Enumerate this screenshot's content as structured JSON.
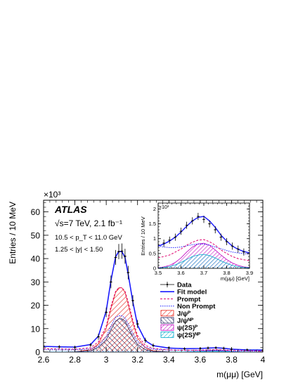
{
  "chart_data": {
    "type": "line",
    "experiment": "ATLAS",
    "energy_label": "√s=7 TeV, 2.1 fb⁻¹",
    "pt_cut": "10.5 < p_T < 11.0 GeV",
    "y_cut": "1.25 < |y| < 1.50",
    "xlabel": "m(μμ) [GeV]",
    "ylabel": "Entries / 10 MeV",
    "y_multiplier": "×10³",
    "xlim": [
      2.6,
      4.0
    ],
    "ylim": [
      0,
      65
    ],
    "xticks": [
      "2.6",
      "2.8",
      "3",
      "3.2",
      "3.4",
      "3.6",
      "3.8",
      "4"
    ],
    "yticks": [
      "0",
      "10",
      "20",
      "30",
      "40",
      "50",
      "60"
    ],
    "legend": [
      "Data",
      "Fit model",
      "Prompt",
      "Non Prompt",
      "J/ψᴾ",
      "J/ψᴺᴾ",
      "ψ(2S)ᴾ",
      "ψ(2S)ᴺᴾ"
    ],
    "legend_position": "center-right",
    "x": [
      2.6,
      2.7,
      2.8,
      2.9,
      2.95,
      3.0,
      3.03,
      3.06,
      3.08,
      3.1,
      3.12,
      3.14,
      3.17,
      3.2,
      3.25,
      3.3,
      3.4,
      3.5,
      3.6,
      3.65,
      3.7,
      3.75,
      3.8,
      3.9,
      4.0
    ],
    "series": [
      {
        "name": "Data",
        "values": [
          2.5,
          2.2,
          2.0,
          3.0,
          6.5,
          17.0,
          30.0,
          40.5,
          43.0,
          43.2,
          41.0,
          34.0,
          22.0,
          12.0,
          5.0,
          2.8,
          1.8,
          1.4,
          1.5,
          1.7,
          1.8,
          1.6,
          1.2,
          0.9,
          0.8
        ]
      },
      {
        "name": "Fit model",
        "values": [
          2.4,
          2.2,
          2.1,
          3.2,
          6.8,
          17.5,
          30.5,
          40.8,
          43.0,
          43.0,
          40.5,
          33.5,
          21.5,
          11.5,
          4.8,
          2.7,
          1.7,
          1.4,
          1.5,
          1.7,
          1.8,
          1.6,
          1.2,
          0.9,
          0.8
        ]
      },
      {
        "name": "Prompt",
        "values": [
          1.4,
          1.3,
          1.2,
          1.8,
          4.3,
          11.0,
          19.5,
          26.0,
          27.5,
          27.5,
          26.0,
          21.5,
          13.5,
          7.0,
          2.8,
          1.5,
          0.9,
          0.7,
          0.8,
          0.9,
          1.0,
          0.9,
          0.7,
          0.5,
          0.4
        ]
      },
      {
        "name": "Non Prompt",
        "values": [
          1.0,
          0.9,
          0.9,
          1.3,
          2.6,
          6.5,
          11.0,
          14.8,
          15.5,
          15.5,
          14.5,
          12.0,
          8.0,
          4.5,
          2.0,
          1.2,
          0.8,
          0.7,
          0.7,
          0.8,
          0.8,
          0.7,
          0.5,
          0.4,
          0.4
        ]
      },
      {
        "name": "J/ψᴾ",
        "values": [
          0,
          0,
          0.1,
          1.0,
          3.5,
          10.0,
          18.5,
          25.5,
          27.5,
          27.5,
          25.5,
          20.5,
          12.5,
          6.0,
          1.8,
          0.5,
          0.1,
          0,
          0,
          0,
          0,
          0,
          0,
          0,
          0
        ]
      },
      {
        "name": "J/ψᴺᴾ",
        "values": [
          0,
          0,
          0.1,
          0.5,
          2.0,
          5.2,
          9.5,
          13.2,
          14.2,
          14.2,
          13.2,
          10.5,
          6.5,
          3.2,
          1.0,
          0.3,
          0.05,
          0,
          0,
          0,
          0,
          0,
          0,
          0,
          0
        ]
      },
      {
        "name": "ψ(2S)ᴾ",
        "values": [
          0,
          0,
          0,
          0,
          0,
          0,
          0,
          0,
          0,
          0,
          0,
          0,
          0,
          0,
          0,
          0,
          0,
          0.05,
          0.3,
          0.55,
          0.65,
          0.5,
          0.2,
          0,
          0
        ]
      },
      {
        "name": "ψ(2S)ᴺᴾ",
        "values": [
          0,
          0,
          0,
          0,
          0,
          0,
          0,
          0,
          0,
          0,
          0,
          0,
          0,
          0,
          0,
          0,
          0,
          0.03,
          0.18,
          0.33,
          0.38,
          0.3,
          0.12,
          0,
          0
        ]
      }
    ],
    "inset": {
      "type": "line",
      "xlabel": "m(μμ) [GeV]",
      "ylabel": "Entries / 10 MeV",
      "y_multiplier": "×10³",
      "xlim": [
        3.5,
        3.9
      ],
      "ylim": [
        0,
        2.2
      ],
      "xticks": [
        "3.5",
        "3.6",
        "3.7",
        "3.8",
        "3.9"
      ],
      "yticks": [
        "0",
        "0.5",
        "1",
        "1.5",
        "2"
      ],
      "x": [
        3.5,
        3.525,
        3.55,
        3.575,
        3.6,
        3.625,
        3.65,
        3.675,
        3.7,
        3.725,
        3.75,
        3.775,
        3.8,
        3.825,
        3.85,
        3.875,
        3.9
      ],
      "series": [
        {
          "name": "Data",
          "values": [
            0.8,
            0.85,
            0.95,
            1.05,
            1.25,
            1.45,
            1.6,
            1.75,
            1.65,
            1.5,
            1.3,
            1.05,
            0.9,
            0.75,
            0.65,
            0.55,
            0.5
          ]
        },
        {
          "name": "Fit model",
          "values": [
            0.75,
            0.82,
            0.92,
            1.05,
            1.22,
            1.42,
            1.6,
            1.72,
            1.75,
            1.6,
            1.38,
            1.12,
            0.92,
            0.75,
            0.64,
            0.57,
            0.52
          ]
        },
        {
          "name": "Prompt",
          "values": [
            0.35,
            0.4,
            0.45,
            0.55,
            0.65,
            0.78,
            0.88,
            0.95,
            0.97,
            0.9,
            0.78,
            0.62,
            0.5,
            0.4,
            0.33,
            0.29,
            0.26
          ]
        },
        {
          "name": "Non Prompt",
          "values": [
            0.75,
            0.72,
            0.7,
            0.7,
            0.72,
            0.76,
            0.8,
            0.82,
            0.82,
            0.78,
            0.72,
            0.66,
            0.6,
            0.55,
            0.52,
            0.5,
            0.48
          ]
        },
        {
          "name": "ψ(2S)ᴾ",
          "values": [
            0.02,
            0.05,
            0.1,
            0.2,
            0.35,
            0.55,
            0.72,
            0.82,
            0.85,
            0.78,
            0.62,
            0.45,
            0.3,
            0.18,
            0.1,
            0.05,
            0.03
          ]
        },
        {
          "name": "ψ(2S)ᴺᴾ",
          "values": [
            0.01,
            0.03,
            0.06,
            0.12,
            0.2,
            0.3,
            0.4,
            0.45,
            0.47,
            0.43,
            0.35,
            0.25,
            0.17,
            0.1,
            0.06,
            0.03,
            0.02
          ]
        }
      ]
    }
  },
  "colors": {
    "fit_model": "#1a1aff",
    "prompt": "#e0006e",
    "non_prompt": "#1a1aff",
    "jpsi_prompt": "#e8281e",
    "jpsi_nonprompt": "#1c1c5a",
    "psi2s_prompt": "#c000c0",
    "psi2s_nonprompt": "#00aacc"
  }
}
